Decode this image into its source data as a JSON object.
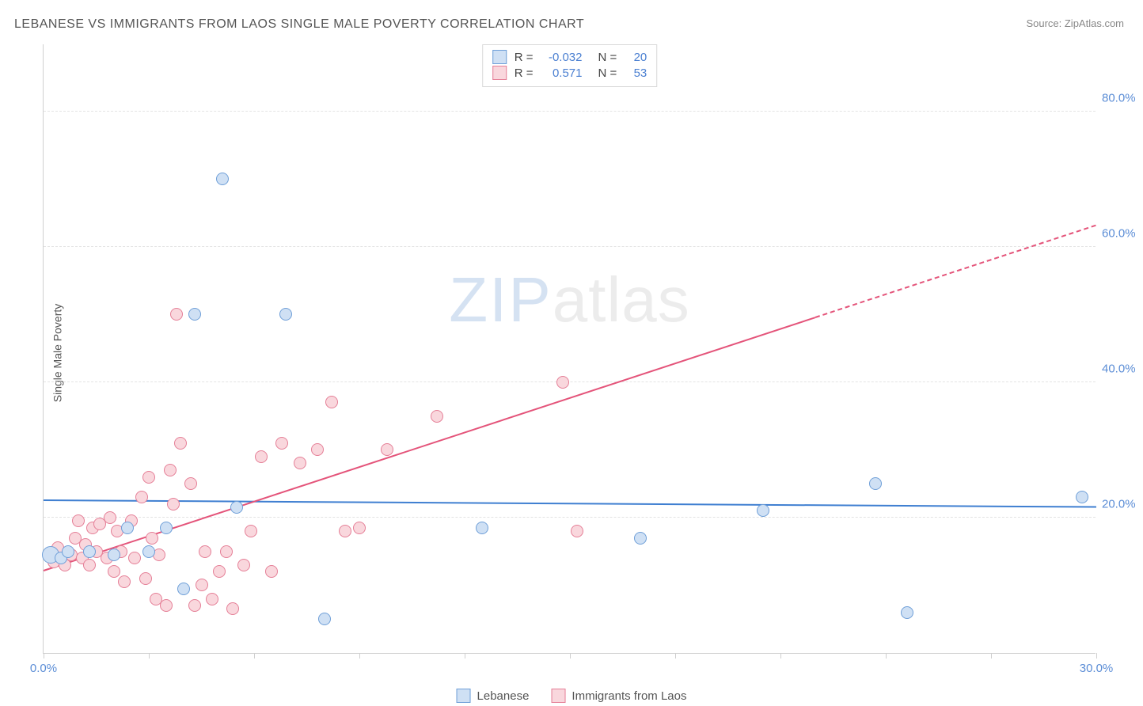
{
  "title": "LEBANESE VS IMMIGRANTS FROM LAOS SINGLE MALE POVERTY CORRELATION CHART",
  "source": "Source: ZipAtlas.com",
  "ylabel": "Single Male Poverty",
  "watermark": {
    "zip": "ZIP",
    "atlas": "atlas"
  },
  "chart": {
    "type": "scatter",
    "xlim": [
      0,
      30
    ],
    "ylim": [
      0,
      90
    ],
    "xtick_positions": [
      0,
      3,
      6,
      9,
      12,
      15,
      18,
      21,
      24,
      27,
      30
    ],
    "xtick_labels": {
      "0": "0.0%",
      "30": "30.0%"
    },
    "ytick_positions": [
      20,
      40,
      60,
      80
    ],
    "ytick_labels": {
      "20": "20.0%",
      "40": "40.0%",
      "60": "60.0%",
      "80": "80.0%"
    },
    "grid_color": "#e3e3e3",
    "axis_color": "#d0d0d0",
    "tick_label_color": "#5b8dd6",
    "background_color": "#ffffff",
    "marker_radius": 8,
    "marker_border_width": 1,
    "series": [
      {
        "name": "Lebanese",
        "fill": "#cfe0f4",
        "stroke": "#6f9fd8",
        "R": "-0.032",
        "N": "20",
        "trend": {
          "y_at_x0": 22.5,
          "y_at_x30": 21.5,
          "color": "#3f7fd1",
          "width": 2,
          "dash_after_x": null
        },
        "points": [
          {
            "x": 0.2,
            "y": 14.5,
            "r": 11
          },
          {
            "x": 0.5,
            "y": 14
          },
          {
            "x": 0.7,
            "y": 15
          },
          {
            "x": 1.3,
            "y": 15
          },
          {
            "x": 2.0,
            "y": 14.5
          },
          {
            "x": 2.4,
            "y": 18.5
          },
          {
            "x": 3.0,
            "y": 15
          },
          {
            "x": 3.5,
            "y": 18.5
          },
          {
            "x": 4.0,
            "y": 9.5
          },
          {
            "x": 4.3,
            "y": 50
          },
          {
            "x": 5.1,
            "y": 70
          },
          {
            "x": 5.5,
            "y": 21.5
          },
          {
            "x": 6.9,
            "y": 50
          },
          {
            "x": 8.0,
            "y": 5
          },
          {
            "x": 12.5,
            "y": 18.5
          },
          {
            "x": 17.0,
            "y": 17
          },
          {
            "x": 20.5,
            "y": 21
          },
          {
            "x": 23.7,
            "y": 25
          },
          {
            "x": 24.6,
            "y": 6
          },
          {
            "x": 29.6,
            "y": 23
          }
        ]
      },
      {
        "name": "Immigrants from Laos",
        "fill": "#f9d7dd",
        "stroke": "#e57f97",
        "R": "0.571",
        "N": "53",
        "trend": {
          "y_at_x0": 12,
          "y_at_x30": 63,
          "color": "#e4547a",
          "width": 2,
          "dash_after_x": 22
        },
        "points": [
          {
            "x": 0.3,
            "y": 13.5
          },
          {
            "x": 0.4,
            "y": 15.5
          },
          {
            "x": 0.6,
            "y": 13
          },
          {
            "x": 0.8,
            "y": 14.5
          },
          {
            "x": 0.9,
            "y": 17
          },
          {
            "x": 1.0,
            "y": 19.5
          },
          {
            "x": 1.1,
            "y": 14
          },
          {
            "x": 1.2,
            "y": 16
          },
          {
            "x": 1.3,
            "y": 13
          },
          {
            "x": 1.4,
            "y": 18.5
          },
          {
            "x": 1.5,
            "y": 15
          },
          {
            "x": 1.6,
            "y": 19
          },
          {
            "x": 1.8,
            "y": 14
          },
          {
            "x": 1.9,
            "y": 20
          },
          {
            "x": 2.0,
            "y": 12
          },
          {
            "x": 2.1,
            "y": 18
          },
          {
            "x": 2.2,
            "y": 15
          },
          {
            "x": 2.3,
            "y": 10.5
          },
          {
            "x": 2.5,
            "y": 19.5
          },
          {
            "x": 2.6,
            "y": 14
          },
          {
            "x": 2.8,
            "y": 23
          },
          {
            "x": 2.9,
            "y": 11
          },
          {
            "x": 3.0,
            "y": 26
          },
          {
            "x": 3.1,
            "y": 17
          },
          {
            "x": 3.2,
            "y": 8
          },
          {
            "x": 3.3,
            "y": 14.5
          },
          {
            "x": 3.5,
            "y": 7
          },
          {
            "x": 3.6,
            "y": 27
          },
          {
            "x": 3.7,
            "y": 22
          },
          {
            "x": 3.8,
            "y": 50
          },
          {
            "x": 3.9,
            "y": 31
          },
          {
            "x": 4.2,
            "y": 25
          },
          {
            "x": 4.3,
            "y": 7
          },
          {
            "x": 4.5,
            "y": 10
          },
          {
            "x": 4.6,
            "y": 15
          },
          {
            "x": 4.8,
            "y": 8
          },
          {
            "x": 5.0,
            "y": 12
          },
          {
            "x": 5.2,
            "y": 15
          },
          {
            "x": 5.4,
            "y": 6.5
          },
          {
            "x": 5.7,
            "y": 13
          },
          {
            "x": 5.9,
            "y": 18
          },
          {
            "x": 6.2,
            "y": 29
          },
          {
            "x": 6.5,
            "y": 12
          },
          {
            "x": 6.8,
            "y": 31
          },
          {
            "x": 7.3,
            "y": 28
          },
          {
            "x": 7.8,
            "y": 30
          },
          {
            "x": 8.2,
            "y": 37
          },
          {
            "x": 8.6,
            "y": 18
          },
          {
            "x": 9.0,
            "y": 18.5
          },
          {
            "x": 9.8,
            "y": 30
          },
          {
            "x": 11.2,
            "y": 35
          },
          {
            "x": 14.8,
            "y": 40
          },
          {
            "x": 15.2,
            "y": 18
          }
        ]
      }
    ],
    "legend": {
      "items": [
        "Lebanese",
        "Immigrants from Laos"
      ]
    }
  }
}
